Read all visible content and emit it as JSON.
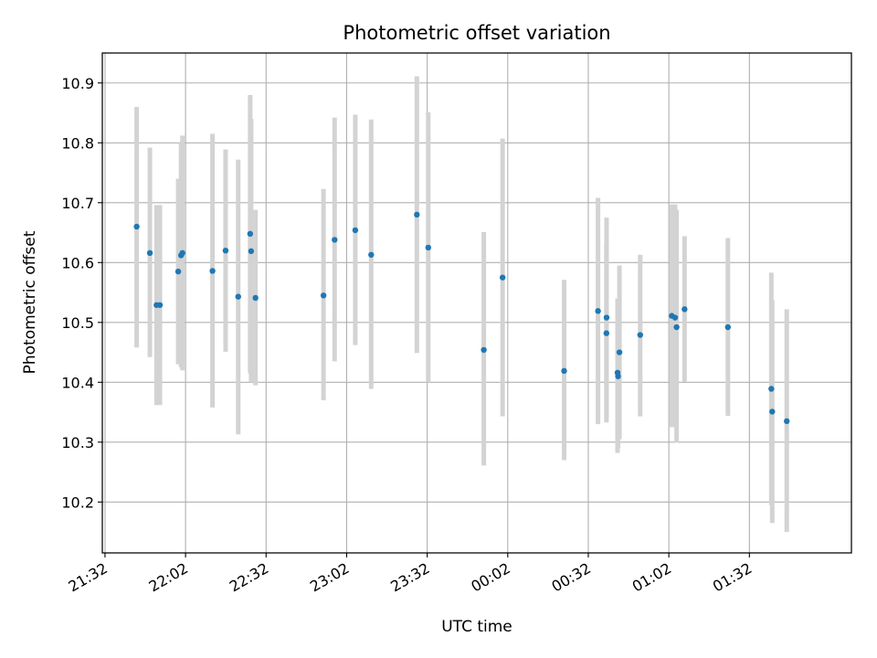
{
  "chart_data": {
    "type": "scatter",
    "title": "Photometric offset variation",
    "xlabel": "UTC time",
    "ylabel": "Photometric offset",
    "x_format": "HH:MM",
    "xlim": [
      "21:31",
      "02:10"
    ],
    "ylim": [
      10.115,
      10.95
    ],
    "grid": true,
    "xticks": [
      {
        "value": "21:32",
        "label": "21:32"
      },
      {
        "value": "22:02",
        "label": "22:02"
      },
      {
        "value": "22:32",
        "label": "22:32"
      },
      {
        "value": "23:02",
        "label": "23:02"
      },
      {
        "value": "23:32",
        "label": "23:32"
      },
      {
        "value": "00:02",
        "label": "00:02"
      },
      {
        "value": "00:32",
        "label": "00:32"
      },
      {
        "value": "01:02",
        "label": "01:02"
      },
      {
        "value": "01:32",
        "label": "01:32"
      }
    ],
    "yticks": [
      {
        "value": 10.2,
        "label": "10.2"
      },
      {
        "value": 10.3,
        "label": "10.3"
      },
      {
        "value": 10.4,
        "label": "10.4"
      },
      {
        "value": 10.5,
        "label": "10.5"
      },
      {
        "value": 10.6,
        "label": "10.6"
      },
      {
        "value": 10.7,
        "label": "10.7"
      },
      {
        "value": 10.8,
        "label": "10.8"
      },
      {
        "value": 10.9,
        "label": "10.9"
      }
    ],
    "colors": {
      "point": "#1f77b4",
      "errorbar": "#d3d3d3",
      "grid": "#b0b0b0"
    },
    "points": [
      {
        "x": "21:43:48",
        "y": 10.66,
        "y_low": 10.458,
        "y_high": 10.86
      },
      {
        "x": "21:48:43",
        "y": 10.616,
        "y_low": 10.442,
        "y_high": 10.792
      },
      {
        "x": "21:51:11",
        "y": 10.529,
        "y_low": 10.362,
        "y_high": 10.696
      },
      {
        "x": "21:52:27",
        "y": 10.529,
        "y_low": 10.362,
        "y_high": 10.696
      },
      {
        "x": "21:59:16",
        "y": 10.585,
        "y_low": 10.43,
        "y_high": 10.74
      },
      {
        "x": "22:00:20",
        "y": 10.612,
        "y_low": 10.425,
        "y_high": 10.8
      },
      {
        "x": "22:00:50",
        "y": 10.616,
        "y_low": 10.42,
        "y_high": 10.812
      },
      {
        "x": "22:12:02",
        "y": 10.586,
        "y_low": 10.358,
        "y_high": 10.815
      },
      {
        "x": "22:16:55",
        "y": 10.62,
        "y_low": 10.451,
        "y_high": 10.789
      },
      {
        "x": "22:21:37",
        "y": 10.543,
        "y_low": 10.313,
        "y_high": 10.772
      },
      {
        "x": "22:26:04",
        "y": 10.648,
        "y_low": 10.415,
        "y_high": 10.88
      },
      {
        "x": "22:26:25",
        "y": 10.619,
        "y_low": 10.4,
        "y_high": 10.84
      },
      {
        "x": "22:28:03",
        "y": 10.541,
        "y_low": 10.395,
        "y_high": 10.688
      },
      {
        "x": "22:53:23",
        "y": 10.545,
        "y_low": 10.37,
        "y_high": 10.723
      },
      {
        "x": "22:57:31",
        "y": 10.638,
        "y_low": 10.435,
        "y_high": 10.842
      },
      {
        "x": "23:05:13",
        "y": 10.654,
        "y_low": 10.462,
        "y_high": 10.847
      },
      {
        "x": "23:11:08",
        "y": 10.613,
        "y_low": 10.389,
        "y_high": 10.839
      },
      {
        "x": "23:28:09",
        "y": 10.68,
        "y_low": 10.449,
        "y_high": 10.911
      },
      {
        "x": "23:32:24",
        "y": 10.625,
        "y_low": 10.4,
        "y_high": 10.851
      },
      {
        "x": "23:53:05",
        "y": 10.454,
        "y_low": 10.261,
        "y_high": 10.651
      },
      {
        "x": "00:00:05",
        "y": 10.575,
        "y_low": 10.343,
        "y_high": 10.807
      },
      {
        "x": "00:23:00",
        "y": 10.419,
        "y_low": 10.27,
        "y_high": 10.571
      },
      {
        "x": "00:35:37",
        "y": 10.519,
        "y_low": 10.33,
        "y_high": 10.708
      },
      {
        "x": "00:38:48",
        "y": 10.508,
        "y_low": 10.34,
        "y_high": 10.675
      },
      {
        "x": "00:38:45",
        "y": 10.482,
        "y_low": 10.333,
        "y_high": 10.633
      },
      {
        "x": "00:42:54",
        "y": 10.416,
        "y_low": 10.282,
        "y_high": 10.54
      },
      {
        "x": "00:43:05",
        "y": 10.41,
        "y_low": 10.29,
        "y_high": 10.53
      },
      {
        "x": "00:43:36",
        "y": 10.45,
        "y_low": 10.305,
        "y_high": 10.595
      },
      {
        "x": "00:51:20",
        "y": 10.479,
        "y_low": 10.343,
        "y_high": 10.613
      },
      {
        "x": "01:03:06",
        "y": 10.511,
        "y_low": 10.325,
        "y_high": 10.697
      },
      {
        "x": "01:04:20",
        "y": 10.508,
        "y_low": 10.325,
        "y_high": 10.697
      },
      {
        "x": "01:04:53",
        "y": 10.492,
        "y_low": 10.299,
        "y_high": 10.688
      },
      {
        "x": "01:07:51",
        "y": 10.522,
        "y_low": 10.401,
        "y_high": 10.644
      },
      {
        "x": "01:24:00",
        "y": 10.492,
        "y_low": 10.344,
        "y_high": 10.641
      },
      {
        "x": "01:40:10",
        "y": 10.389,
        "y_low": 10.195,
        "y_high": 10.583
      },
      {
        "x": "01:40:30",
        "y": 10.351,
        "y_low": 10.165,
        "y_high": 10.537
      },
      {
        "x": "01:45:55",
        "y": 10.335,
        "y_low": 10.15,
        "y_high": 10.522
      }
    ]
  }
}
